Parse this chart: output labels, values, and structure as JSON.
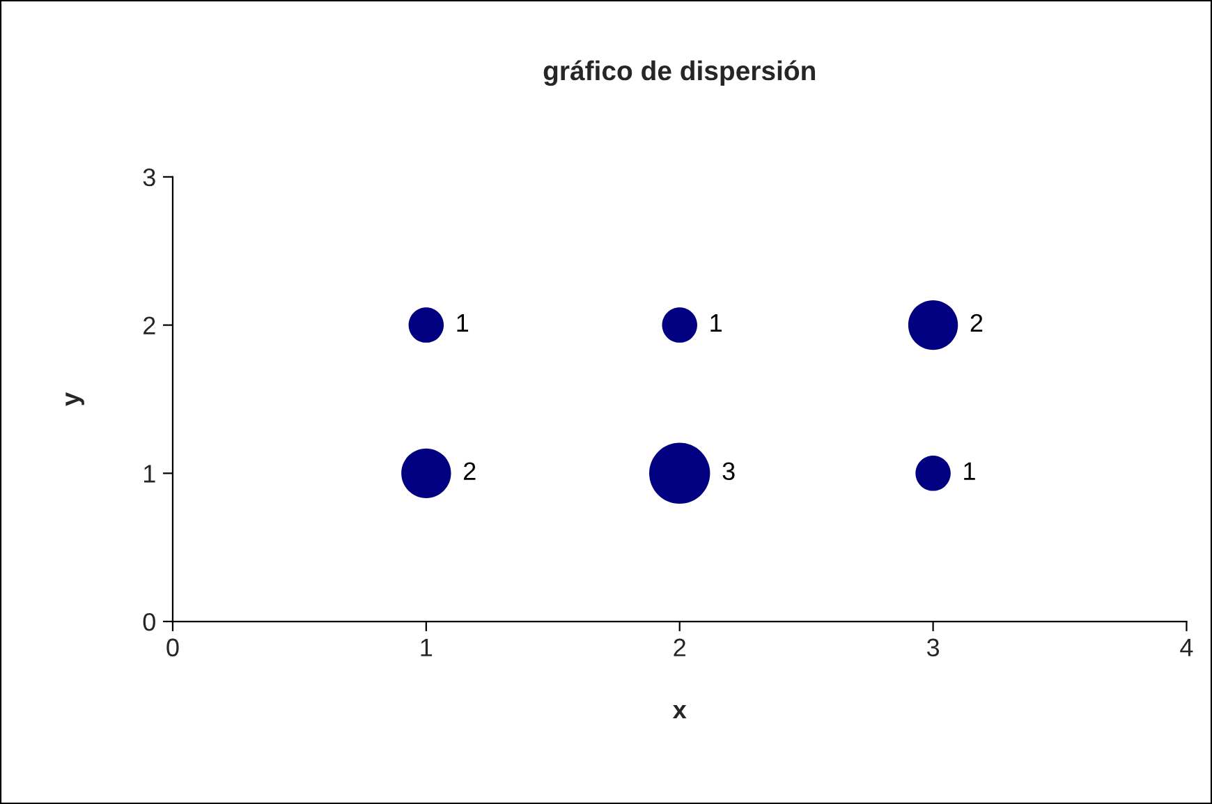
{
  "chart_data": {
    "type": "bubble",
    "title": "gráfico de dispersión",
    "xlabel": "x",
    "ylabel": "y",
    "series": [
      {
        "color": "#000080",
        "x": [
          1,
          2,
          3,
          1,
          2,
          3
        ],
        "values": [
          2,
          2,
          2,
          1,
          1,
          1
        ],
        "sizes": [
          1,
          1,
          2,
          2,
          3,
          1
        ],
        "value_labels": [
          "1",
          "1",
          "2",
          "2",
          "3",
          "1"
        ]
      }
    ],
    "xlim": [
      0,
      4
    ],
    "xticks": [
      0,
      1,
      2,
      3,
      4
    ],
    "ylim": [
      0,
      3
    ],
    "yticks": [
      0,
      1,
      2,
      3
    ],
    "grid": false,
    "legend": false
  }
}
